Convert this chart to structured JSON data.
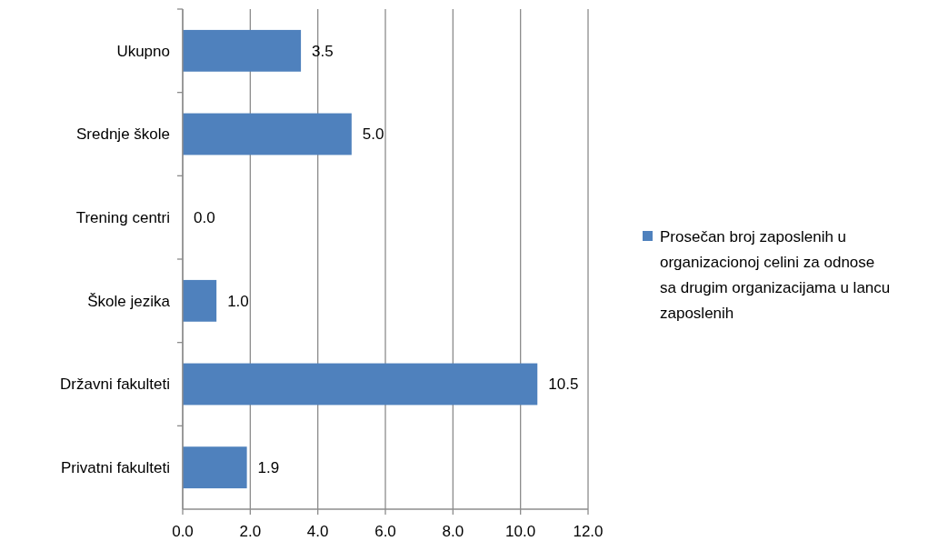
{
  "chart_data": {
    "type": "bar",
    "orientation": "horizontal",
    "categories": [
      "Ukupno",
      "Srednje škole",
      "Trening centri",
      "Škole jezika",
      "Državni fakulteti",
      "Privatni fakulteti"
    ],
    "series": [
      {
        "name": "Prosečan broj zaposlenih u organizacionoj celini za odnose sa drugim organizacijama u lancu zaposlenih",
        "color": "#4f81bd",
        "values": [
          3.5,
          5.0,
          0.0,
          1.0,
          10.5,
          1.9
        ],
        "value_labels": [
          "3.5",
          "5.0",
          "0.0",
          "1.0",
          "10.5",
          "1.9"
        ]
      }
    ],
    "xlim": [
      0,
      12
    ],
    "xticks": [
      {
        "value": 0,
        "label": "0.0"
      },
      {
        "value": 2,
        "label": "2.0"
      },
      {
        "value": 4,
        "label": "4.0"
      },
      {
        "value": 6,
        "label": "6.0"
      },
      {
        "value": 8,
        "label": "8.0"
      },
      {
        "value": 10,
        "label": "10.0"
      },
      {
        "value": 12,
        "label": "12.0"
      }
    ],
    "grid": "x",
    "legend": "right"
  }
}
